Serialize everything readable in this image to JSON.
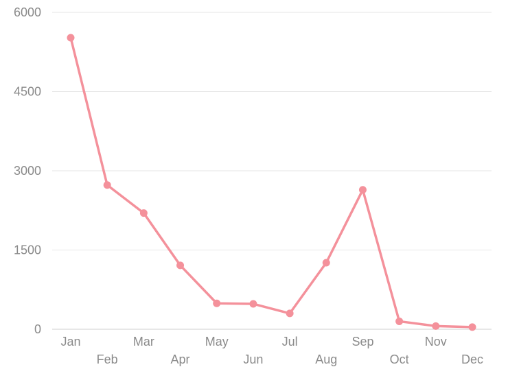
{
  "chart_data": {
    "type": "line",
    "title": "",
    "xlabel": "",
    "ylabel": "",
    "categories": [
      "Jan",
      "Feb",
      "Mar",
      "Apr",
      "May",
      "Jun",
      "Jul",
      "Aug",
      "Sep",
      "Oct",
      "Nov",
      "Dec"
    ],
    "series": [
      {
        "values": [
          5520,
          2730,
          2200,
          1210,
          490,
          480,
          300,
          1260,
          2640,
          150,
          60,
          40
        ],
        "color": "#f4919b"
      }
    ],
    "ylim": [
      0,
      6000
    ],
    "yticks": [
      "0",
      "1500",
      "3000",
      "4500",
      "6000"
    ],
    "grid": "horizontal",
    "legend": "none"
  }
}
